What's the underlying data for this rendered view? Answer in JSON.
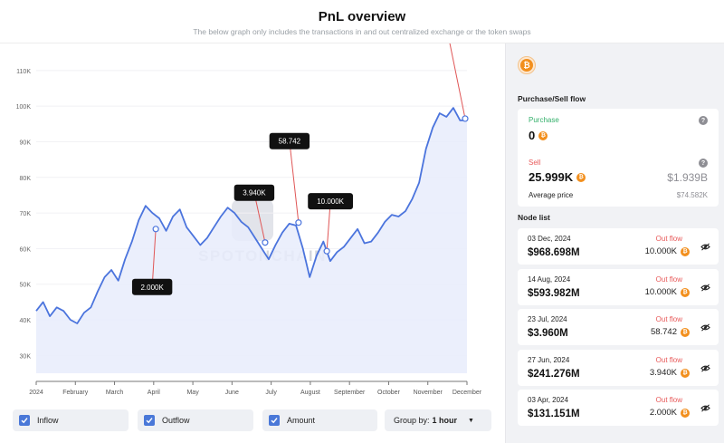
{
  "header": {
    "title": "PnL overview",
    "subtitle": "The below graph only includes the transactions in and out centralized exchange or the token swaps"
  },
  "chart_data": {
    "type": "area",
    "y_ticks": [
      "30K",
      "40K",
      "50K",
      "60K",
      "70K",
      "80K",
      "90K",
      "100K",
      "110K"
    ],
    "y_values": [
      30000,
      40000,
      50000,
      60000,
      70000,
      80000,
      90000,
      100000,
      110000
    ],
    "ylim": [
      25000,
      112000
    ],
    "x_labels": [
      "2024",
      "February",
      "March",
      "April",
      "May",
      "June",
      "July",
      "August",
      "September",
      "October",
      "November",
      "December"
    ],
    "series": [
      {
        "values": [
          42500,
          45000,
          41000,
          43500,
          42500,
          40000,
          39000,
          42000,
          43500,
          48000,
          52000,
          54000,
          51000,
          57000,
          62000,
          68000,
          72000,
          70000,
          68500,
          65000,
          69000,
          71000,
          66000,
          63500,
          61000,
          63000,
          66000,
          69000,
          71500,
          70000,
          67500,
          66000,
          63000,
          60000,
          57000,
          61000,
          64500,
          67000,
          66500,
          60000,
          52000,
          58000,
          62000,
          56500,
          59000,
          60500,
          63000,
          65500,
          61500,
          62000,
          64500,
          67500,
          69500,
          69000,
          70500,
          74000,
          78500,
          88000,
          94000,
          98000,
          97000,
          99500,
          96000,
          96000
        ]
      }
    ],
    "annotations": [
      {
        "label": "2.000K",
        "date": "Apr 3, 2024",
        "price": 65500
      },
      {
        "label": "3.940K",
        "date": "Jun 27, 2024",
        "price": 61700
      },
      {
        "label": "58.742",
        "date": "Jul 23, 2024",
        "price": 67300
      },
      {
        "label": "10.000K",
        "date": "Aug 14, 2024",
        "price": 59300
      },
      {
        "label": "10.000K",
        "date": "Dec 3, 2024",
        "price": 96500
      }
    ],
    "colors": {
      "line": "#4b74dd",
      "fill": "#e8ecfb",
      "marker": "#e05656",
      "tooltip_bg": "#111111"
    },
    "watermark": "SPOTONCHAIN"
  },
  "controls": {
    "inflow": "Inflow",
    "outflow": "Outflow",
    "amount": "Amount",
    "group_by_label": "Group by:",
    "group_by_value": "1 hour"
  },
  "sidebar": {
    "token_icon": "bitcoin-icon",
    "purchase_sell_title": "Purchase/Sell flow",
    "purchase_label": "Purchase",
    "purchase_amount": "0",
    "sell_label": "Sell",
    "sell_amount": "25.999K",
    "sell_usd": "$1.939B",
    "avg_price_label": "Average price",
    "avg_price_value": "$74.582K",
    "node_list_title": "Node list",
    "nodes": [
      {
        "date": "03 Dec, 2024",
        "value": "$968.698M",
        "flow": "Out flow",
        "amount": "10.000K"
      },
      {
        "date": "14 Aug, 2024",
        "value": "$593.982M",
        "flow": "Out flow",
        "amount": "10.000K"
      },
      {
        "date": "23 Jul, 2024",
        "value": "$3.960M",
        "flow": "Out flow",
        "amount": "58.742"
      },
      {
        "date": "27 Jun, 2024",
        "value": "$241.276M",
        "flow": "Out flow",
        "amount": "3.940K"
      },
      {
        "date": "03 Apr, 2024",
        "value": "$131.151M",
        "flow": "Out flow",
        "amount": "2.000K"
      }
    ]
  }
}
